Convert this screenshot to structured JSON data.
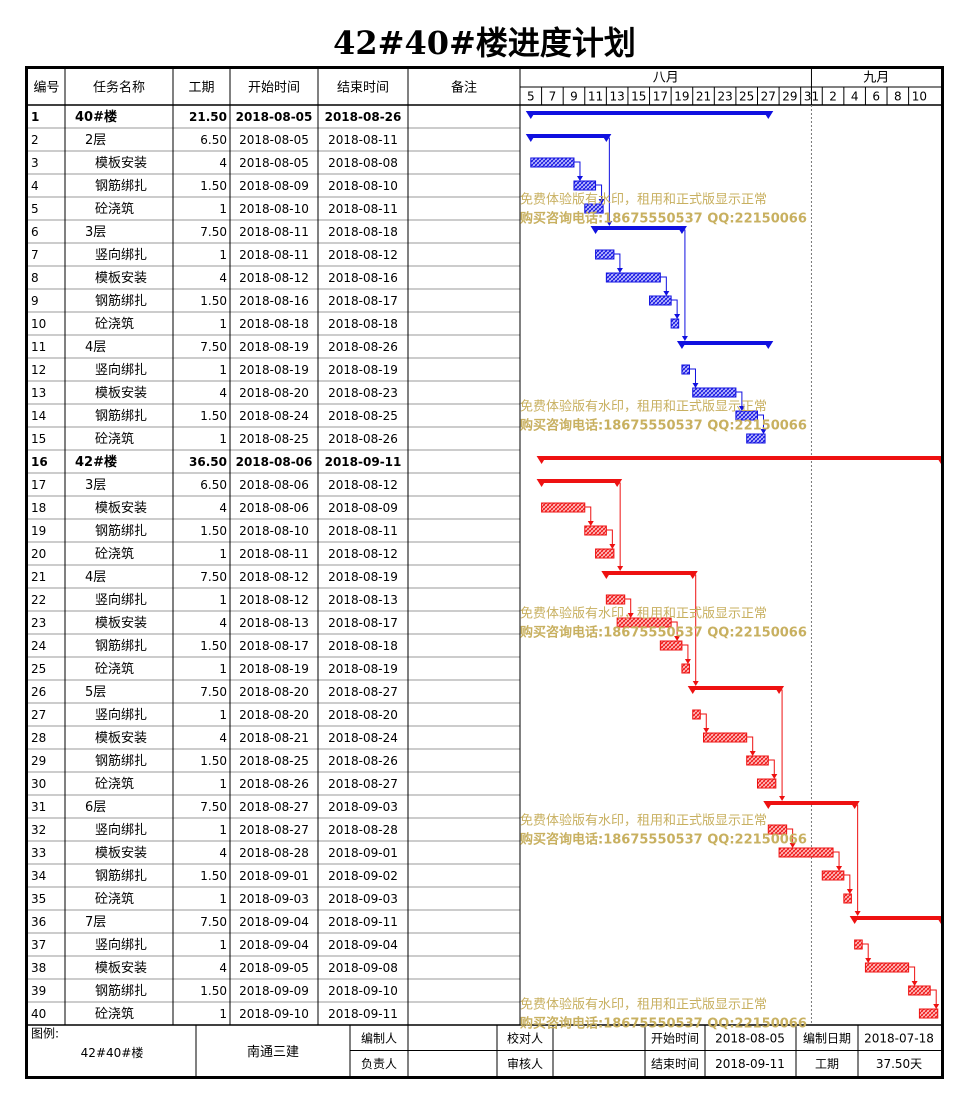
{
  "title": "42#40#楼进度计划",
  "headers": {
    "id": "编号",
    "name": "任务名称",
    "duration": "工期",
    "start": "开始时间",
    "end": "结束时间",
    "note": "备注"
  },
  "timeline": {
    "months": [
      {
        "label": "八月",
        "start": "2018-08-04",
        "end": "2018-08-31"
      },
      {
        "label": "九月",
        "start": "2018-08-31",
        "end": "2018-09-11"
      }
    ],
    "day_ticks": [
      "5",
      "7",
      "9",
      "11",
      "13",
      "15",
      "17",
      "19",
      "21",
      "23",
      "25",
      "27",
      "29",
      "31",
      "2",
      "4",
      "6",
      "8",
      "10"
    ],
    "range": [
      "2018-08-04",
      "2018-09-11"
    ],
    "today_line": "2018-08-31"
  },
  "colors": {
    "group1": "#1010e0",
    "group2": "#ee1111",
    "watermark": "#c8b060",
    "border": "#000000",
    "grid": "#888888"
  },
  "chart_data": {
    "type": "gantt",
    "tasks": [
      {
        "id": "1",
        "name": "40#楼",
        "level": 0,
        "duration": "21.50",
        "start": "2018-08-05",
        "end": "2018-08-26",
        "group": 1
      },
      {
        "id": "2",
        "name": "2层",
        "level": 1,
        "duration": "6.50",
        "start": "2018-08-05",
        "end": "2018-08-11",
        "group": 1
      },
      {
        "id": "3",
        "name": "模板安装",
        "level": 2,
        "duration": "4",
        "start": "2018-08-05",
        "end": "2018-08-08",
        "group": 1
      },
      {
        "id": "4",
        "name": "钢筋绑扎",
        "level": 2,
        "duration": "1.50",
        "start": "2018-08-09",
        "end": "2018-08-10",
        "group": 1
      },
      {
        "id": "5",
        "name": "砼浇筑",
        "level": 2,
        "duration": "1",
        "start": "2018-08-10",
        "end": "2018-08-11",
        "group": 1
      },
      {
        "id": "6",
        "name": "3层",
        "level": 1,
        "duration": "7.50",
        "start": "2018-08-11",
        "end": "2018-08-18",
        "group": 1
      },
      {
        "id": "7",
        "name": "竖向绑扎",
        "level": 2,
        "duration": "1",
        "start": "2018-08-11",
        "end": "2018-08-12",
        "group": 1
      },
      {
        "id": "8",
        "name": "模板安装",
        "level": 2,
        "duration": "4",
        "start": "2018-08-12",
        "end": "2018-08-16",
        "group": 1
      },
      {
        "id": "9",
        "name": "钢筋绑扎",
        "level": 2,
        "duration": "1.50",
        "start": "2018-08-16",
        "end": "2018-08-17",
        "group": 1
      },
      {
        "id": "10",
        "name": "砼浇筑",
        "level": 2,
        "duration": "1",
        "start": "2018-08-18",
        "end": "2018-08-18",
        "group": 1
      },
      {
        "id": "11",
        "name": "4层",
        "level": 1,
        "duration": "7.50",
        "start": "2018-08-19",
        "end": "2018-08-26",
        "group": 1
      },
      {
        "id": "12",
        "name": "竖向绑扎",
        "level": 2,
        "duration": "1",
        "start": "2018-08-19",
        "end": "2018-08-19",
        "group": 1
      },
      {
        "id": "13",
        "name": "模板安装",
        "level": 2,
        "duration": "4",
        "start": "2018-08-20",
        "end": "2018-08-23",
        "group": 1
      },
      {
        "id": "14",
        "name": "钢筋绑扎",
        "level": 2,
        "duration": "1.50",
        "start": "2018-08-24",
        "end": "2018-08-25",
        "group": 1
      },
      {
        "id": "15",
        "name": "砼浇筑",
        "level": 2,
        "duration": "1",
        "start": "2018-08-25",
        "end": "2018-08-26",
        "group": 1
      },
      {
        "id": "16",
        "name": "42#楼",
        "level": 0,
        "duration": "36.50",
        "start": "2018-08-06",
        "end": "2018-09-11",
        "group": 2
      },
      {
        "id": "17",
        "name": "3层",
        "level": 1,
        "duration": "6.50",
        "start": "2018-08-06",
        "end": "2018-08-12",
        "group": 2
      },
      {
        "id": "18",
        "name": "模板安装",
        "level": 2,
        "duration": "4",
        "start": "2018-08-06",
        "end": "2018-08-09",
        "group": 2
      },
      {
        "id": "19",
        "name": "钢筋绑扎",
        "level": 2,
        "duration": "1.50",
        "start": "2018-08-10",
        "end": "2018-08-11",
        "group": 2
      },
      {
        "id": "20",
        "name": "砼浇筑",
        "level": 2,
        "duration": "1",
        "start": "2018-08-11",
        "end": "2018-08-12",
        "group": 2
      },
      {
        "id": "21",
        "name": "4层",
        "level": 1,
        "duration": "7.50",
        "start": "2018-08-12",
        "end": "2018-08-19",
        "group": 2
      },
      {
        "id": "22",
        "name": "竖向绑扎",
        "level": 2,
        "duration": "1",
        "start": "2018-08-12",
        "end": "2018-08-13",
        "group": 2
      },
      {
        "id": "23",
        "name": "模板安装",
        "level": 2,
        "duration": "4",
        "start": "2018-08-13",
        "end": "2018-08-17",
        "group": 2
      },
      {
        "id": "24",
        "name": "钢筋绑扎",
        "level": 2,
        "duration": "1.50",
        "start": "2018-08-17",
        "end": "2018-08-18",
        "group": 2
      },
      {
        "id": "25",
        "name": "砼浇筑",
        "level": 2,
        "duration": "1",
        "start": "2018-08-19",
        "end": "2018-08-19",
        "group": 2
      },
      {
        "id": "26",
        "name": "5层",
        "level": 1,
        "duration": "7.50",
        "start": "2018-08-20",
        "end": "2018-08-27",
        "group": 2
      },
      {
        "id": "27",
        "name": "竖向绑扎",
        "level": 2,
        "duration": "1",
        "start": "2018-08-20",
        "end": "2018-08-20",
        "group": 2
      },
      {
        "id": "28",
        "name": "模板安装",
        "level": 2,
        "duration": "4",
        "start": "2018-08-21",
        "end": "2018-08-24",
        "group": 2
      },
      {
        "id": "29",
        "name": "钢筋绑扎",
        "level": 2,
        "duration": "1.50",
        "start": "2018-08-25",
        "end": "2018-08-26",
        "group": 2
      },
      {
        "id": "30",
        "name": "砼浇筑",
        "level": 2,
        "duration": "1",
        "start": "2018-08-26",
        "end": "2018-08-27",
        "group": 2
      },
      {
        "id": "31",
        "name": "6层",
        "level": 1,
        "duration": "7.50",
        "start": "2018-08-27",
        "end": "2018-09-03",
        "group": 2
      },
      {
        "id": "32",
        "name": "竖向绑扎",
        "level": 2,
        "duration": "1",
        "start": "2018-08-27",
        "end": "2018-08-28",
        "group": 2
      },
      {
        "id": "33",
        "name": "模板安装",
        "level": 2,
        "duration": "4",
        "start": "2018-08-28",
        "end": "2018-09-01",
        "group": 2
      },
      {
        "id": "34",
        "name": "钢筋绑扎",
        "level": 2,
        "duration": "1.50",
        "start": "2018-09-01",
        "end": "2018-09-02",
        "group": 2
      },
      {
        "id": "35",
        "name": "砼浇筑",
        "level": 2,
        "duration": "1",
        "start": "2018-09-03",
        "end": "2018-09-03",
        "group": 2
      },
      {
        "id": "36",
        "name": "7层",
        "level": 1,
        "duration": "7.50",
        "start": "2018-09-04",
        "end": "2018-09-11",
        "group": 2
      },
      {
        "id": "37",
        "name": "竖向绑扎",
        "level": 2,
        "duration": "1",
        "start": "2018-09-04",
        "end": "2018-09-04",
        "group": 2
      },
      {
        "id": "38",
        "name": "模板安装",
        "level": 2,
        "duration": "4",
        "start": "2018-09-05",
        "end": "2018-09-08",
        "group": 2
      },
      {
        "id": "39",
        "name": "钢筋绑扎",
        "level": 2,
        "duration": "1.50",
        "start": "2018-09-09",
        "end": "2018-09-10",
        "group": 2
      },
      {
        "id": "40",
        "name": "砼浇筑",
        "level": 2,
        "duration": "1",
        "start": "2018-09-10",
        "end": "2018-09-11",
        "group": 2
      }
    ]
  },
  "watermark": {
    "line1": "免费体验版有水印，租用和正式版显示正常",
    "line2": "购买咨询电话:18675550537 QQ:22150066"
  },
  "footer": {
    "legend_label": "图例:",
    "project": "42#40#楼",
    "company": "南通三建",
    "compiler_label": "编制人",
    "compiler_value": "",
    "proofreader_label": "校对人",
    "proofreader_value": "",
    "responsible_label": "负责人",
    "responsible_value": "",
    "reviewer_label": "审核人",
    "reviewer_value": "",
    "start_label": "开始时间",
    "start_value": "2018-08-05",
    "end_label": "结束时间",
    "end_value": "2018-09-11",
    "date_label": "编制日期",
    "date_value": "2018-07-18",
    "period_label": "工期",
    "period_value": "37.50天"
  }
}
